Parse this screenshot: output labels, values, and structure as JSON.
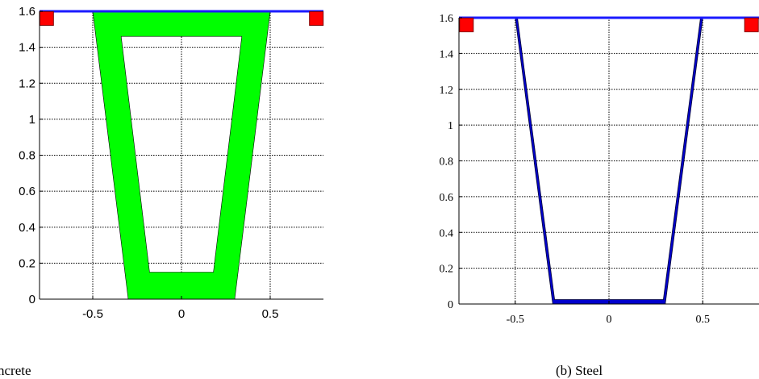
{
  "colors": {
    "concrete_fill": "#00ff00",
    "steel_fill": "#0000cc",
    "beam_line": "#1a1aff",
    "marker_fill": "#ff0000",
    "marker_edge": "#800000",
    "grid": "#000000"
  },
  "chart_data": [
    {
      "type": "scatter",
      "title": "",
      "caption": "ncrete",
      "xlabel": "",
      "ylabel": "",
      "xlim": [
        -0.8,
        0.8
      ],
      "ylim": [
        0,
        1.6
      ],
      "xticks": [
        -0.5,
        0,
        0.5
      ],
      "xtick_labels": [
        "-0.5",
        "0",
        "0.5"
      ],
      "yticks": [
        0,
        0.2,
        0.4,
        0.6,
        0.8,
        1,
        1.2,
        1.4,
        1.6
      ],
      "ytick_labels": [
        "0",
        "0.2",
        "0.4",
        "0.6",
        "0.8",
        "1",
        "1.2",
        "1.4",
        "1.6"
      ],
      "grid": true,
      "cross_section": {
        "material": "concrete",
        "outer": [
          [
            -0.5,
            1.6
          ],
          [
            0.5,
            1.6
          ],
          [
            0.3,
            0
          ],
          [
            -0.3,
            0
          ]
        ],
        "inner": [
          [
            -0.34,
            1.46
          ],
          [
            0.34,
            1.46
          ],
          [
            0.18,
            0.15
          ],
          [
            -0.18,
            0.15
          ]
        ]
      },
      "top_line": {
        "x": [
          -0.8,
          0.8
        ],
        "y": 1.6
      },
      "markers": [
        {
          "x": -0.76,
          "y": 1.56
        },
        {
          "x": 0.76,
          "y": 1.56
        }
      ]
    },
    {
      "type": "scatter",
      "title": "",
      "caption": "(b) Steel",
      "xlabel": "",
      "ylabel": "",
      "xlim": [
        -0.8,
        0.8
      ],
      "ylim": [
        0,
        1.6
      ],
      "xticks": [
        -0.5,
        0,
        0.5
      ],
      "xtick_labels": [
        "-0.5",
        "0",
        "0.5"
      ],
      "yticks": [
        0,
        0.2,
        0.4,
        0.6,
        0.8,
        1,
        1.2,
        1.4,
        1.6
      ],
      "ytick_labels": [
        "0",
        "0.2",
        "0.4",
        "0.6",
        "0.8",
        "1",
        "1.2",
        "1.4",
        "1.6"
      ],
      "grid": true,
      "cross_section": {
        "material": "steel",
        "outer": [
          [
            -0.5,
            1.6
          ],
          [
            0.5,
            1.6
          ],
          [
            0.3,
            0
          ],
          [
            -0.3,
            0
          ]
        ],
        "inner": [
          [
            -0.488,
            1.6
          ],
          [
            0.488,
            1.6
          ],
          [
            0.29,
            0.025
          ],
          [
            -0.29,
            0.025
          ]
        ]
      },
      "top_line": {
        "x": [
          -0.8,
          0.8
        ],
        "y": 1.6
      },
      "markers": [
        {
          "x": -0.76,
          "y": 1.56
        },
        {
          "x": 0.76,
          "y": 1.56
        }
      ]
    }
  ]
}
